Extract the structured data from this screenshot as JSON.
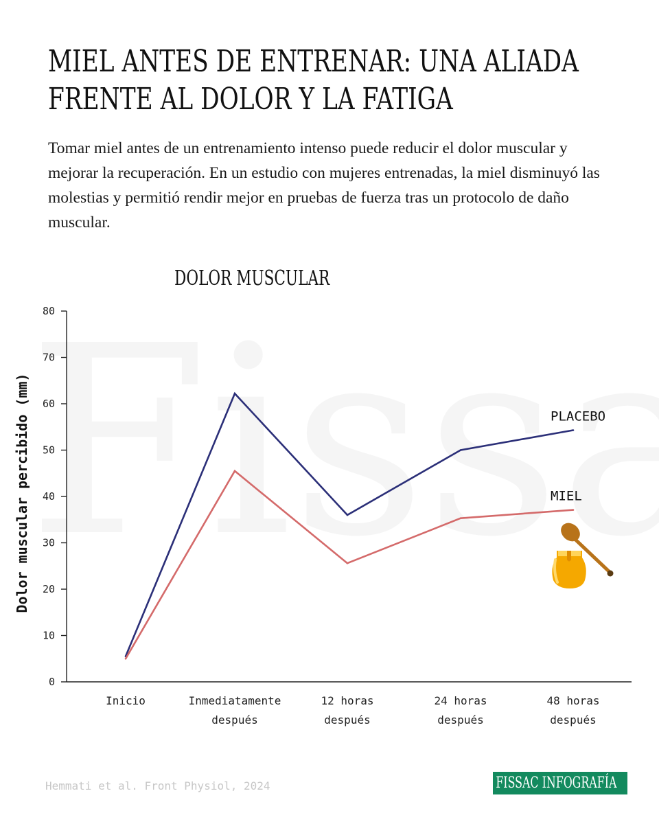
{
  "header": {
    "title_line1": "MIEL ANTES DE ENTRENAR: UNA ALIADA",
    "title_line2": "FRENTE AL DOLOR Y LA FATIGA",
    "intro": "Tomar miel antes de un entrenamiento intenso puede reducir el dolor muscular y mejorar la recuperación. En un estudio con mujeres entrenadas, la miel disminuyó las molestias y permitió rendir mejor en pruebas de fuerza tras un protocolo de daño muscular."
  },
  "chart_data": {
    "type": "line",
    "title": "DOLOR MUSCULAR",
    "ylabel": "Dolor muscular percibido (mm)",
    "xlabel": "",
    "ylim": [
      0,
      80
    ],
    "yticks": [
      0,
      10,
      20,
      30,
      40,
      50,
      60,
      70,
      80
    ],
    "categories": [
      [
        "Inicio"
      ],
      [
        "Inmediatamente",
        "después"
      ],
      [
        "12 horas",
        "después"
      ],
      [
        "24 horas",
        "después"
      ],
      [
        "48 horas",
        "después"
      ]
    ],
    "series": [
      {
        "name": "PLACEBO",
        "color": "#2b2f78",
        "values": [
          5.5,
          62.2,
          36.0,
          50.0,
          54.3
        ]
      },
      {
        "name": "MIEL",
        "color": "#d46a6a",
        "values": [
          5.0,
          45.5,
          25.6,
          35.3,
          37.1
        ]
      }
    ],
    "grid": false,
    "legend": "inline-right"
  },
  "watermark": "Fissac",
  "icon": "honey-jar-with-dipper-icon",
  "colors": {
    "brand_green": "#138a5e",
    "honey": "#f5a800",
    "dipper": "#b8731a"
  },
  "footer": {
    "citation": "Hemmati et al. Front Physiol, 2024",
    "brand": "FISSAC INFOGRAFÍA"
  }
}
